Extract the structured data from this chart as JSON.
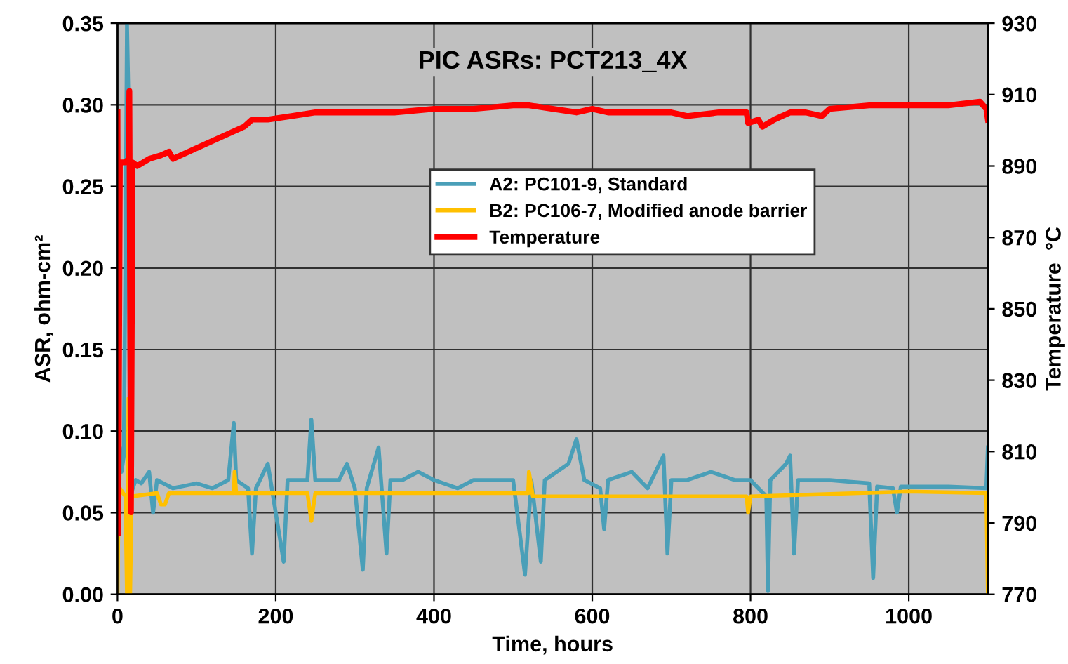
{
  "chart_data": {
    "type": "line",
    "title": "PIC ASRs: PCT213_4X",
    "xlabel": "Time, hours",
    "ylabel": "ASR, ohm-cm²",
    "y2label": "Temperature  °C",
    "xlim": [
      0,
      1100
    ],
    "xticks": [
      0,
      200,
      400,
      600,
      800,
      1000
    ],
    "ylim": [
      0,
      0.35
    ],
    "yticks": [
      {
        "value": 0,
        "label": "0.00"
      },
      {
        "value": 0.05,
        "label": "0.05"
      },
      {
        "value": 0.1,
        "label": "0.10"
      },
      {
        "value": 0.15,
        "label": "0.15"
      },
      {
        "value": 0.2,
        "label": "0.20"
      },
      {
        "value": 0.25,
        "label": "0.25"
      },
      {
        "value": 0.3,
        "label": "0.30"
      },
      {
        "value": 0.35,
        "label": "0.35"
      }
    ],
    "y2lim": [
      770,
      930
    ],
    "y2ticks": [
      770,
      790,
      810,
      830,
      850,
      870,
      890,
      910,
      930
    ],
    "grid": true,
    "legend": "top",
    "marker": "none",
    "line_style": "solid",
    "series": [
      {
        "name": "A2: PC101-9, Standard",
        "color": "#4a9fb8",
        "x": [
          0,
          3,
          5,
          8,
          10,
          12,
          14,
          16,
          23,
          30,
          40,
          45,
          50,
          70,
          100,
          120,
          140,
          147,
          150,
          165,
          170,
          175,
          190,
          195,
          210,
          215,
          240,
          245,
          250,
          280,
          290,
          300,
          310,
          315,
          330,
          340,
          345,
          360,
          380,
          400,
          430,
          450,
          480,
          500,
          515,
          523,
          535,
          540,
          570,
          580,
          590,
          610,
          615,
          620,
          650,
          670,
          690,
          695,
          700,
          720,
          750,
          780,
          800,
          820,
          822,
          825,
          845,
          850,
          855,
          860,
          900,
          950,
          955,
          960,
          980,
          985,
          990,
          1050,
          1098,
          1100
        ],
        "values": [
          0.08,
          0.09,
          0.075,
          0.085,
          0.2,
          0.35,
          0.3,
          0.06,
          0.07,
          0.068,
          0.075,
          0.05,
          0.07,
          0.065,
          0.068,
          0.065,
          0.07,
          0.105,
          0.07,
          0.065,
          0.025,
          0.065,
          0.08,
          0.065,
          0.02,
          0.07,
          0.07,
          0.107,
          0.07,
          0.07,
          0.08,
          0.065,
          0.015,
          0.065,
          0.09,
          0.025,
          0.07,
          0.07,
          0.075,
          0.07,
          0.065,
          0.07,
          0.07,
          0.07,
          0.012,
          0.07,
          0.02,
          0.07,
          0.08,
          0.095,
          0.07,
          0.065,
          0.04,
          0.07,
          0.075,
          0.065,
          0.085,
          0.025,
          0.07,
          0.07,
          0.075,
          0.07,
          0.07,
          0.06,
          0.002,
          0.07,
          0.08,
          0.085,
          0.025,
          0.07,
          0.07,
          0.068,
          0.01,
          0.066,
          0.065,
          0.05,
          0.066,
          0.066,
          0.065,
          0.09
        ]
      },
      {
        "name": "B2: PC106-7, Modified anode barrier",
        "color": "#ffc000",
        "x": [
          0,
          1,
          3,
          10,
          12,
          14,
          16,
          18,
          50,
          55,
          60,
          65,
          147,
          148,
          150,
          240,
          245,
          250,
          300,
          519,
          520,
          525,
          600,
          795,
          797,
          800,
          1000,
          1098,
          1100
        ],
        "values": [
          0.0,
          0.04,
          0.065,
          0.06,
          0.0,
          0.12,
          0.0,
          0.06,
          0.062,
          0.055,
          0.055,
          0.062,
          0.062,
          0.075,
          0.062,
          0.062,
          0.045,
          0.062,
          0.062,
          0.062,
          0.075,
          0.06,
          0.06,
          0.06,
          0.05,
          0.06,
          0.063,
          0.062,
          0.0
        ]
      },
      {
        "name": "Temperature",
        "color": "#ff0000",
        "axis": "y2",
        "x": [
          0,
          1,
          3,
          10,
          14,
          15,
          17,
          19,
          25,
          40,
          55,
          65,
          70,
          80,
          100,
          130,
          160,
          170,
          190,
          220,
          250,
          300,
          350,
          400,
          450,
          500,
          520,
          550,
          580,
          600,
          620,
          700,
          720,
          760,
          795,
          797,
          810,
          815,
          830,
          850,
          870,
          890,
          900,
          950,
          1000,
          1050,
          1090,
          1098,
          1100
        ],
        "values": [
          905,
          787,
          891,
          891,
          892,
          911,
          793,
          891,
          890,
          892,
          893,
          894,
          892,
          893,
          895,
          898,
          901,
          903,
          903,
          904,
          905,
          905,
          905,
          906,
          906,
          907,
          907,
          906,
          905,
          906,
          905,
          905,
          904,
          905,
          905,
          902,
          903,
          901,
          903,
          905,
          905,
          904,
          906,
          907,
          907,
          907,
          908,
          906,
          903
        ]
      }
    ]
  }
}
